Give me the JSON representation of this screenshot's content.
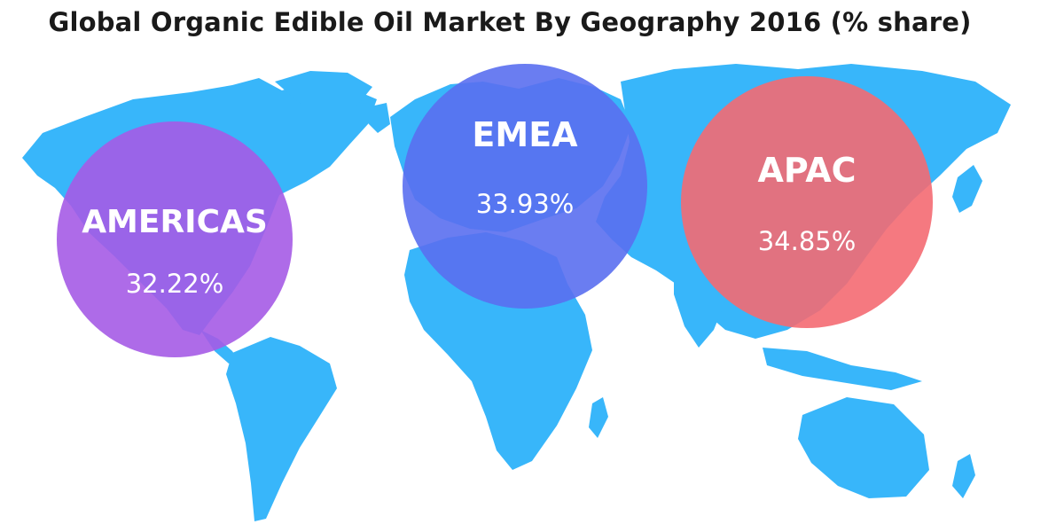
{
  "title": "Global Organic Edible Oil Market By Geography 2016 (% share)",
  "colors": {
    "land": "#38b6fa",
    "americas": "#a55be6",
    "emea": "#5a6ff0",
    "apac": "#f46a72"
  },
  "chart_data": {
    "type": "bubble-map",
    "title": "Global Organic Edible Oil Market By Geography 2016 (% share)",
    "unit": "% share",
    "year": 2016,
    "regions": [
      {
        "key": "americas",
        "name": "AMERICAS",
        "value": 32.22,
        "label": "32.22%",
        "color": "#a55be6"
      },
      {
        "key": "emea",
        "name": "EMEA",
        "value": 33.93,
        "label": "33.93%",
        "color": "#5a6ff0"
      },
      {
        "key": "apac",
        "name": "APAC",
        "value": 34.85,
        "label": "34.85%",
        "color": "#f46a72"
      }
    ]
  }
}
